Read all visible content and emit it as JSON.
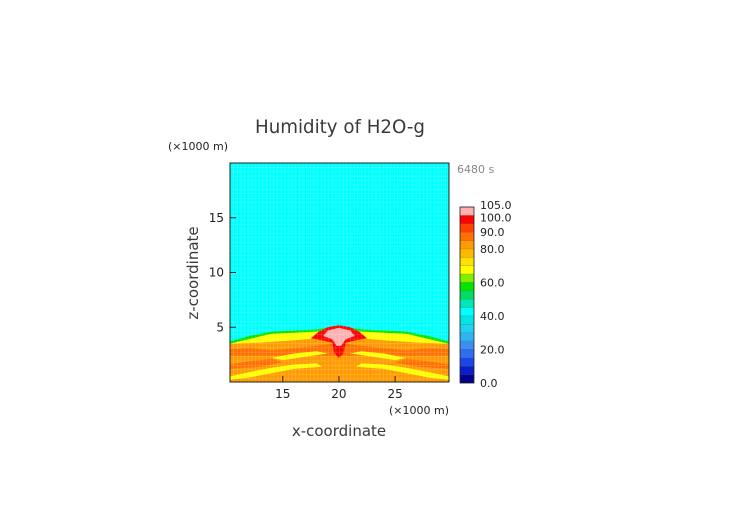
{
  "chart_data": {
    "type": "heatmap",
    "title": "Humidity of H2O-g",
    "time_label": "6480 s",
    "xlabel": "x-coordinate",
    "ylabel": "z-coordinate",
    "x_unit": "(×1000 m)",
    "y_unit": "(×1000 m)",
    "xlim": [
      10.3,
      29.8
    ],
    "ylim": [
      0,
      20
    ],
    "x_ticks": [
      15,
      20,
      25
    ],
    "y_ticks": [
      5,
      10,
      15
    ],
    "colorbar": {
      "levels": [
        0,
        5,
        10,
        15,
        20,
        25,
        30,
        35,
        40,
        45,
        50,
        55,
        60,
        65,
        70,
        75,
        80,
        85,
        90,
        95,
        100,
        105
      ],
      "colors": [
        "#00008c",
        "#0a1ec8",
        "#1e46e6",
        "#2f6ef0",
        "#3c90f4",
        "#2cb4f4",
        "#1ed2f0",
        "#00e6e6",
        "#00ffff",
        "#00e6b4",
        "#00dc64",
        "#00e600",
        "#80f000",
        "#ffff00",
        "#ffe000",
        "#ffb800",
        "#ff9a00",
        "#ff7000",
        "#ff4000",
        "#ff0000",
        "#ffb0b0"
      ],
      "labeled_values": [
        0,
        20,
        40,
        60,
        80,
        90,
        100,
        105
      ],
      "tick_labels": [
        "0.0",
        "20.0",
        "40.0",
        "60.0",
        "80.0",
        "90.0",
        "100.0",
        "105.0"
      ]
    },
    "field_summary": [
      {
        "region": "z 4.5–20",
        "humidity": 40
      },
      {
        "region": "z 4–4.5 (thin layer)",
        "humidity": 55
      },
      {
        "region": "z 0–4 (lower layer)",
        "humidity": 82
      },
      {
        "region": "near-surface bands",
        "humidity": 70
      },
      {
        "region": "central plume x≈20, z≈3.5–5",
        "humidity": 100
      }
    ]
  }
}
